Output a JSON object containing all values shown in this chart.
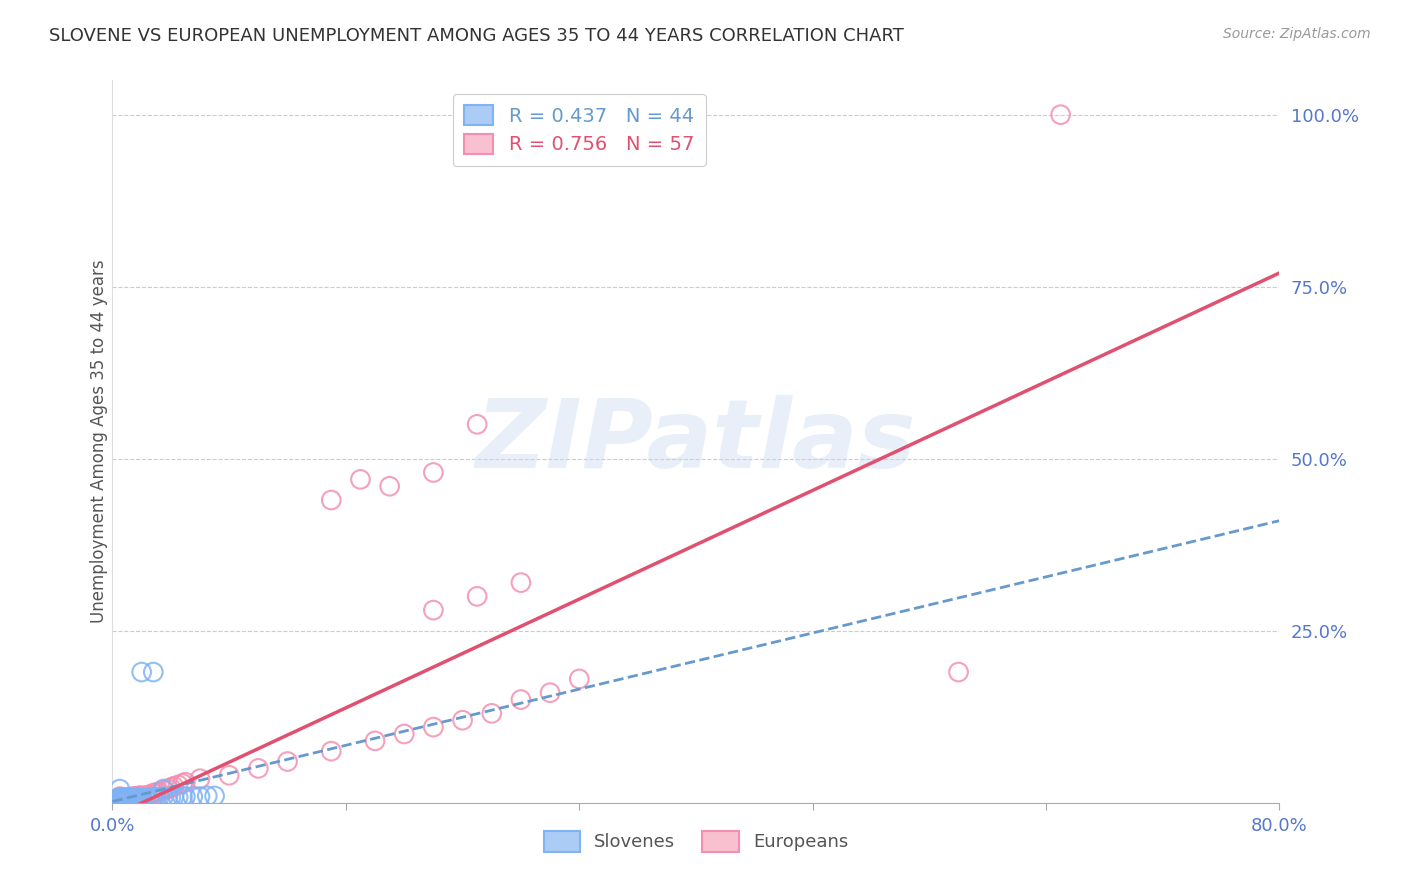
{
  "title": "SLOVENE VS EUROPEAN UNEMPLOYMENT AMONG AGES 35 TO 44 YEARS CORRELATION CHART",
  "source": "Source: ZipAtlas.com",
  "ylabel": "Unemployment Among Ages 35 to 44 years",
  "xlim": [
    0.0,
    0.8
  ],
  "ylim": [
    0.0,
    1.05
  ],
  "ytick_values": [
    0.25,
    0.5,
    0.75,
    1.0
  ],
  "ytick_labels": [
    "25.0%",
    "50.0%",
    "75.0%",
    "100.0%"
  ],
  "xtick_values": [
    0.0,
    0.16,
    0.32,
    0.48,
    0.64,
    0.8
  ],
  "xtick_labels": [
    "0.0%",
    "",
    "",
    "",
    "",
    "80.0%"
  ],
  "legend_label_sl": "R = 0.437   N = 44",
  "legend_label_eu": "R = 0.756   N = 57",
  "slovenes_color": "#7fb3f5",
  "europeans_color": "#f48fb1",
  "slovenes_line_color": "#6699cc",
  "europeans_line_color": "#e05070",
  "sl_line_x": [
    0.0,
    0.8
  ],
  "sl_line_y": [
    0.002,
    0.41
  ],
  "eu_line_x": [
    0.0,
    0.8
  ],
  "eu_line_y": [
    -0.02,
    0.77
  ],
  "background_color": "#ffffff",
  "watermark": "ZIPatlas",
  "watermark_color": "#c8d8f0",
  "title_fontsize": 13,
  "source_fontsize": 10,
  "tick_label_color": "#5577cc",
  "ylabel_color": "#555555",
  "sl_scatter_x": [
    0.003,
    0.004,
    0.005,
    0.005,
    0.006,
    0.006,
    0.007,
    0.007,
    0.008,
    0.008,
    0.009,
    0.009,
    0.01,
    0.01,
    0.011,
    0.012,
    0.013,
    0.014,
    0.015,
    0.016,
    0.017,
    0.018,
    0.019,
    0.02,
    0.022,
    0.025,
    0.028,
    0.03,
    0.032,
    0.035,
    0.038,
    0.04,
    0.042,
    0.045,
    0.048,
    0.05,
    0.055,
    0.06,
    0.065,
    0.07,
    0.02,
    0.028,
    0.005,
    0.035
  ],
  "sl_scatter_y": [
    0.005,
    0.006,
    0.004,
    0.008,
    0.005,
    0.007,
    0.004,
    0.008,
    0.005,
    0.007,
    0.004,
    0.007,
    0.005,
    0.008,
    0.006,
    0.007,
    0.005,
    0.006,
    0.006,
    0.007,
    0.006,
    0.007,
    0.006,
    0.007,
    0.007,
    0.007,
    0.008,
    0.008,
    0.008,
    0.009,
    0.008,
    0.007,
    0.008,
    0.008,
    0.009,
    0.009,
    0.009,
    0.009,
    0.01,
    0.01,
    0.19,
    0.19,
    0.02,
    0.02
  ],
  "eu_scatter_x": [
    0.001,
    0.002,
    0.003,
    0.004,
    0.005,
    0.005,
    0.006,
    0.007,
    0.008,
    0.009,
    0.01,
    0.011,
    0.012,
    0.013,
    0.014,
    0.015,
    0.016,
    0.017,
    0.018,
    0.019,
    0.02,
    0.022,
    0.024,
    0.026,
    0.028,
    0.03,
    0.032,
    0.035,
    0.038,
    0.04,
    0.042,
    0.045,
    0.048,
    0.05,
    0.06,
    0.08,
    0.1,
    0.12,
    0.15,
    0.18,
    0.2,
    0.22,
    0.24,
    0.26,
    0.28,
    0.3,
    0.32,
    0.15,
    0.17,
    0.19,
    0.22,
    0.25,
    0.58,
    0.22,
    0.25,
    0.28,
    0.65
  ],
  "eu_scatter_y": [
    0.004,
    0.005,
    0.006,
    0.005,
    0.006,
    0.009,
    0.006,
    0.007,
    0.005,
    0.007,
    0.008,
    0.007,
    0.008,
    0.008,
    0.009,
    0.009,
    0.009,
    0.009,
    0.01,
    0.01,
    0.01,
    0.01,
    0.011,
    0.012,
    0.014,
    0.015,
    0.016,
    0.018,
    0.02,
    0.022,
    0.024,
    0.026,
    0.028,
    0.03,
    0.035,
    0.04,
    0.05,
    0.06,
    0.075,
    0.09,
    0.1,
    0.11,
    0.12,
    0.13,
    0.15,
    0.16,
    0.18,
    0.44,
    0.47,
    0.46,
    0.48,
    0.55,
    0.19,
    0.28,
    0.3,
    0.32,
    1.0
  ],
  "scatter_size": 180,
  "scatter_lw": 1.5,
  "scatter_alpha": 0.85
}
